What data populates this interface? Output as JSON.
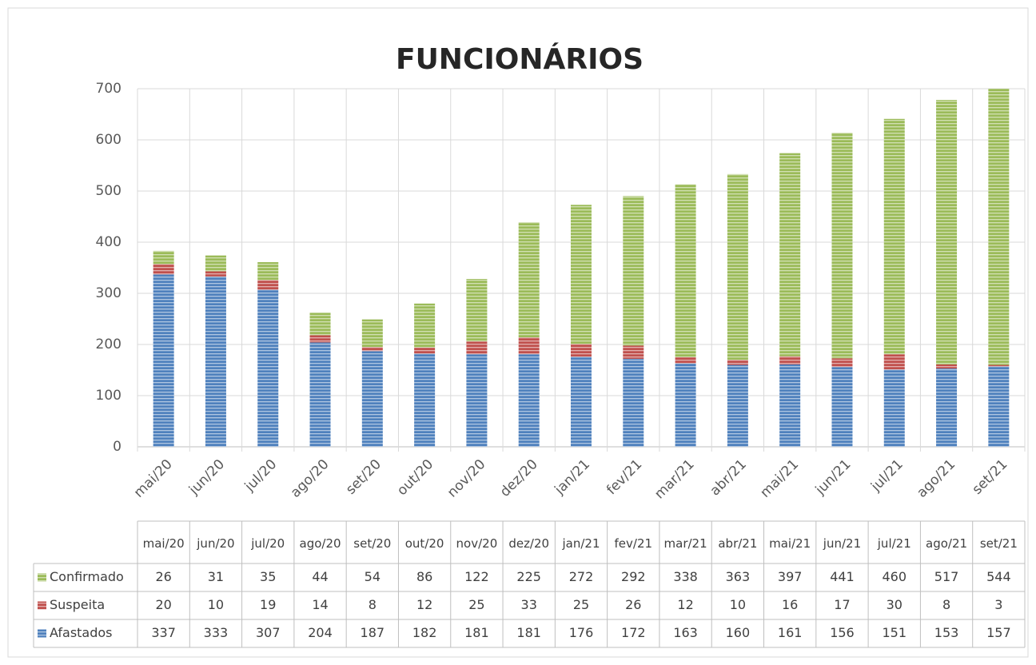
{
  "chart_data": {
    "type": "bar",
    "stacked": true,
    "title": "FUNCIONÁRIOS",
    "categories": [
      "mai/20",
      "jun/20",
      "jul/20",
      "ago/20",
      "set/20",
      "out/20",
      "nov/20",
      "dez/20",
      "jan/21",
      "fev/21",
      "mar/21",
      "abr/21",
      "mai/21",
      "jun/21",
      "jul/21",
      "ago/21",
      "set/21"
    ],
    "series": [
      {
        "name": "Afastados",
        "color": "#4f81bd",
        "values": [
          337,
          333,
          307,
          204,
          187,
          182,
          181,
          181,
          176,
          172,
          163,
          160,
          161,
          156,
          151,
          153,
          157
        ]
      },
      {
        "name": "Suspeita",
        "color": "#c0504d",
        "values": [
          20,
          10,
          19,
          14,
          8,
          12,
          25,
          33,
          25,
          26,
          12,
          10,
          16,
          17,
          30,
          8,
          3
        ]
      },
      {
        "name": "Confirmado",
        "color": "#9bbb59",
        "values": [
          26,
          31,
          35,
          44,
          54,
          86,
          122,
          225,
          272,
          292,
          338,
          363,
          397,
          441,
          460,
          517,
          544
        ]
      }
    ],
    "ylim": [
      0,
      700
    ],
    "yticks": [
      0,
      100,
      200,
      300,
      400,
      500,
      600,
      700
    ],
    "grid": true,
    "data_table": true
  }
}
